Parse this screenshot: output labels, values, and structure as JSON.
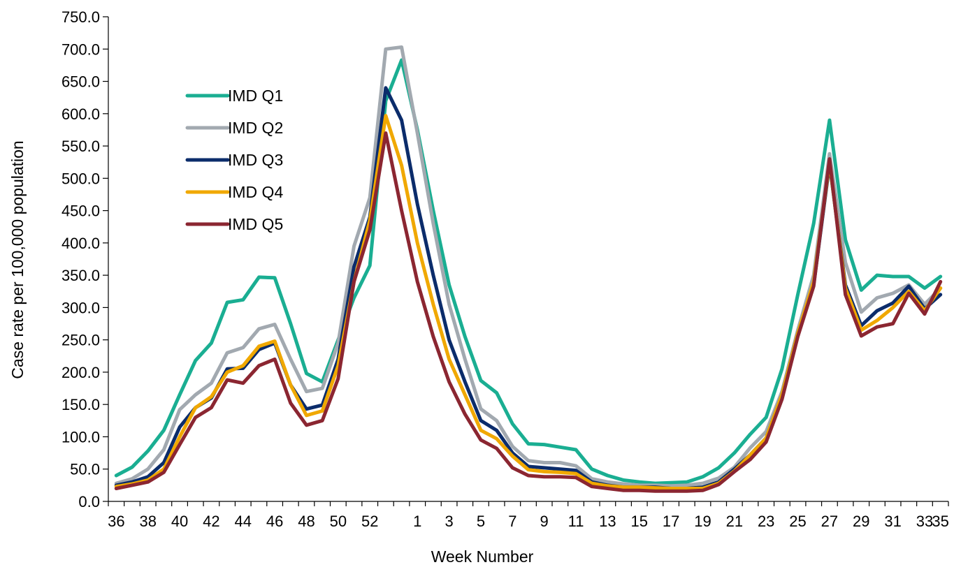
{
  "chart_data": {
    "type": "line",
    "title": "",
    "xlabel": "Week Number",
    "ylabel": "Case rate per 100,000 population",
    "ylim": [
      0,
      750
    ],
    "y_ticks": [
      0,
      50,
      100,
      150,
      200,
      250,
      300,
      350,
      400,
      450,
      500,
      550,
      600,
      650,
      700,
      750
    ],
    "y_tick_labels": [
      "0.0",
      "50.0",
      "100.0",
      "150.0",
      "200.0",
      "250.0",
      "300.0",
      "350.0",
      "400.0",
      "450.0",
      "500.0",
      "550.0",
      "600.0",
      "650.0",
      "700.0",
      "750.0"
    ],
    "x": [
      "36",
      "37",
      "38",
      "39",
      "40",
      "41",
      "42",
      "43",
      "44",
      "45",
      "46",
      "47",
      "48",
      "49",
      "50",
      "51",
      "52",
      "53",
      "1",
      "2",
      "3",
      "4",
      "5",
      "6",
      "7",
      "8",
      "9",
      "10",
      "11",
      "12",
      "13",
      "14",
      "15",
      "16",
      "17",
      "18",
      "19",
      "20",
      "21",
      "22",
      "23",
      "24",
      "25",
      "26",
      "27",
      "28",
      "29",
      "30",
      "31",
      "32",
      "33",
      "34",
      "35"
    ],
    "x_tick_labels": [
      "36",
      "38",
      "40",
      "42",
      "44",
      "46",
      "48",
      "50",
      "52",
      "1",
      "3",
      "5",
      "7",
      "9",
      "11",
      "13",
      "15",
      "17",
      "19",
      "21",
      "23",
      "25",
      "27",
      "29",
      "31",
      "33",
      "35"
    ],
    "x_tick_indices": [
      0,
      2,
      4,
      6,
      8,
      10,
      12,
      14,
      16,
      19,
      21,
      23,
      25,
      27,
      29,
      31,
      33,
      35,
      37,
      39,
      41,
      43,
      45,
      47,
      49,
      51,
      52
    ],
    "grid": false,
    "legend_position": "top-left",
    "series": [
      {
        "name": "IMD Q1",
        "color": "#1aae92",
        "values": [
          40,
          53,
          78,
          110,
          165,
          218,
          245,
          308,
          312,
          347,
          346,
          275,
          198,
          185,
          250,
          315,
          365,
          620,
          683,
          575,
          450,
          335,
          255,
          187,
          168,
          120,
          89,
          88,
          84,
          80,
          50,
          40,
          33,
          30,
          28,
          29,
          30,
          38,
          52,
          75,
          104,
          130,
          205,
          320,
          430,
          590,
          405,
          327,
          350,
          348,
          348,
          330,
          348
        ]
      },
      {
        "name": "IMD Q2",
        "color": "#a2a9b0",
        "values": [
          28,
          35,
          50,
          80,
          142,
          165,
          183,
          230,
          238,
          267,
          274,
          220,
          170,
          175,
          245,
          395,
          470,
          700,
          703,
          570,
          430,
          305,
          220,
          143,
          125,
          85,
          63,
          60,
          60,
          55,
          35,
          30,
          27,
          25,
          25,
          24,
          25,
          28,
          36,
          53,
          83,
          108,
          170,
          265,
          350,
          538,
          370,
          293,
          315,
          322,
          335,
          305,
          330
        ]
      },
      {
        "name": "IMD Q3",
        "color": "#0b2c6b",
        "values": [
          25,
          30,
          38,
          60,
          115,
          145,
          160,
          205,
          206,
          235,
          245,
          180,
          143,
          149,
          220,
          363,
          440,
          640,
          590,
          460,
          350,
          250,
          185,
          125,
          110,
          75,
          54,
          52,
          50,
          48,
          30,
          25,
          22,
          22,
          22,
          20,
          20,
          22,
          30,
          50,
          72,
          98,
          165,
          260,
          335,
          522,
          335,
          272,
          295,
          307,
          333,
          298,
          320
        ]
      },
      {
        "name": "IMD Q4",
        "color": "#f0a800",
        "values": [
          23,
          27,
          33,
          50,
          100,
          145,
          162,
          200,
          210,
          240,
          248,
          180,
          133,
          140,
          210,
          340,
          435,
          597,
          520,
          400,
          305,
          220,
          165,
          110,
          97,
          70,
          49,
          46,
          45,
          43,
          28,
          24,
          22,
          22,
          21,
          20,
          20,
          20,
          28,
          47,
          72,
          98,
          165,
          260,
          340,
          525,
          330,
          265,
          280,
          300,
          325,
          295,
          330
        ]
      },
      {
        "name": "IMD Q5",
        "color": "#8b2631",
        "values": [
          20,
          25,
          30,
          45,
          88,
          130,
          145,
          188,
          183,
          210,
          220,
          152,
          118,
          125,
          190,
          340,
          420,
          570,
          450,
          340,
          255,
          185,
          135,
          95,
          82,
          52,
          40,
          38,
          38,
          37,
          23,
          20,
          17,
          17,
          16,
          16,
          16,
          17,
          26,
          46,
          65,
          92,
          158,
          255,
          333,
          530,
          320,
          256,
          270,
          275,
          322,
          290,
          340
        ]
      }
    ]
  }
}
